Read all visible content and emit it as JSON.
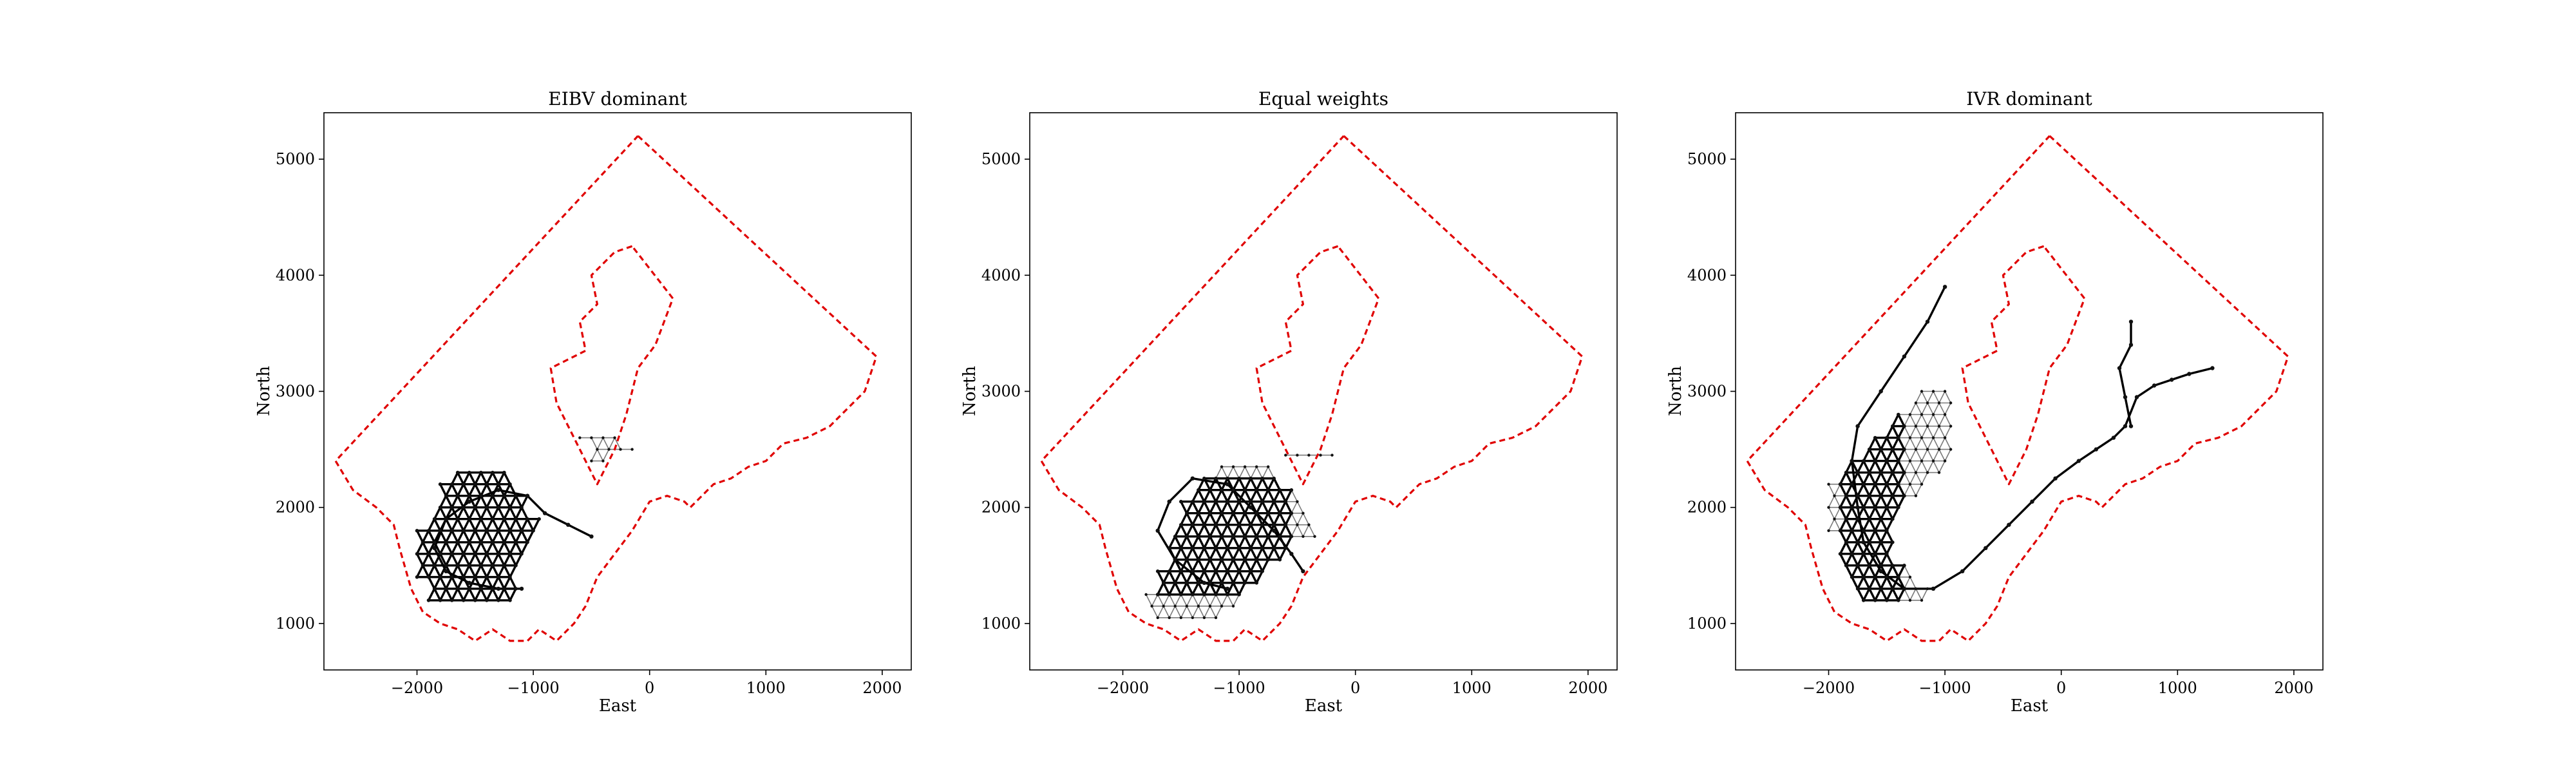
{
  "chart_data": [
    {
      "type": "scatter",
      "title": "EIBV dominant",
      "xlabel": "East",
      "ylabel": "North",
      "xlim": [
        -2800,
        2250
      ],
      "ylim": [
        600,
        5400
      ],
      "xticks": [
        -2000,
        -1000,
        0,
        1000,
        2000
      ],
      "yticks": [
        1000,
        2000,
        3000,
        4000,
        5000
      ],
      "xtick_labels": [
        "−2000",
        "−1000",
        "0",
        "1000",
        "2000"
      ],
      "ytick_labels": [
        "1000",
        "2000",
        "3000",
        "4000",
        "5000"
      ],
      "grid": false,
      "boundary_color": "#e00000",
      "graph": {
        "origin": [
          -2000,
          1200
        ],
        "step": 100,
        "rows": [
          [
            1,
            8,
            17
          ],
          [
            1,
            8,
            17
          ],
          [
            0,
            8,
            17
          ],
          [
            0,
            8,
            17
          ],
          [
            0,
            9,
            17
          ],
          [
            0,
            9,
            16
          ],
          [
            0,
            10,
            16
          ],
          [
            1,
            10,
            15
          ],
          [
            2,
            9,
            15
          ],
          [
            2,
            9,
            16
          ],
          [
            2,
            8,
            16
          ],
          [
            3,
            7,
            16
          ],
          [
            15,
            16
          ],
          [
            15,
            18
          ],
          [
            14,
            17
          ]
        ],
        "dark_cols": [
          0,
          10
        ],
        "dark_rows": [
          0,
          11
        ],
        "path": [
          [
            -1100,
            1300
          ],
          [
            -1300,
            1300
          ],
          [
            -1550,
            1350
          ],
          [
            -1750,
            1450
          ],
          [
            -1850,
            1650
          ],
          [
            -1750,
            1900
          ],
          [
            -1550,
            2050
          ],
          [
            -1300,
            2150
          ],
          [
            -1050,
            2100
          ],
          [
            -900,
            1950
          ],
          [
            -700,
            1850
          ],
          [
            -500,
            1750
          ]
        ]
      }
    },
    {
      "type": "scatter",
      "title": "Equal weights",
      "xlabel": "East",
      "ylabel": "North",
      "xlim": [
        -2800,
        2250
      ],
      "ylim": [
        600,
        5400
      ],
      "xticks": [
        -2000,
        -1000,
        0,
        1000,
        2000
      ],
      "yticks": [
        1000,
        2000,
        3000,
        4000,
        5000
      ],
      "xtick_labels": [
        "−2000",
        "−1000",
        "0",
        "1000",
        "2000"
      ],
      "ytick_labels": [
        "1000",
        "2000",
        "3000",
        "4000",
        "5000"
      ],
      "grid": false,
      "boundary_color": "#e00000",
      "graph": {
        "origin": [
          -2000,
          1050
        ],
        "step": 100,
        "rows": [
          [
            3,
            8
          ],
          [
            2,
            9
          ],
          [
            2,
            10,
            14
          ],
          [
            3,
            11,
            14
          ],
          [
            3,
            12,
            15
          ],
          [
            4,
            13,
            15
          ],
          [
            4,
            14,
            16
          ],
          [
            4,
            16
          ],
          [
            5,
            16
          ],
          [
            5,
            15
          ],
          [
            5,
            15
          ],
          [
            6,
            14
          ],
          [
            7,
            13
          ],
          [
            8,
            12
          ],
          [
            14,
            18
          ]
        ],
        "dark_cols": [
          3,
          14
        ],
        "dark_rows": [
          2,
          12
        ],
        "path": [
          [
            -1100,
            1300
          ],
          [
            -1300,
            1350
          ],
          [
            -1550,
            1550
          ],
          [
            -1700,
            1800
          ],
          [
            -1600,
            2050
          ],
          [
            -1400,
            2250
          ],
          [
            -1100,
            2200
          ],
          [
            -900,
            2000
          ],
          [
            -700,
            1800
          ],
          [
            -550,
            1600
          ],
          [
            -450,
            1450
          ]
        ]
      }
    },
    {
      "type": "scatter",
      "title": "IVR dominant",
      "xlabel": "East",
      "ylabel": "North",
      "xlim": [
        -2800,
        2250
      ],
      "ylim": [
        600,
        5400
      ],
      "xticks": [
        -2000,
        -1000,
        0,
        1000,
        2000
      ],
      "yticks": [
        1000,
        2000,
        3000,
        4000,
        5000
      ],
      "xtick_labels": [
        "−2000",
        "−1000",
        "0",
        "1000",
        "2000"
      ],
      "ytick_labels": [
        "1000",
        "2000",
        "3000",
        "4000",
        "5000"
      ],
      "grid": false,
      "boundary_color": "#e00000",
      "graph": {
        "origin": [
          -2100,
          1200
        ],
        "step": 100,
        "rows": [
          [
            4,
            9
          ],
          [
            3,
            9
          ],
          [
            3,
            8
          ],
          [
            2,
            7
          ],
          [
            2,
            6
          ],
          [
            2,
            6
          ],
          [
            1,
            6
          ],
          [
            1,
            6
          ],
          [
            1,
            7
          ],
          [
            1,
            8
          ],
          [
            1,
            9
          ],
          [
            2,
            10
          ],
          [
            3,
            11
          ],
          [
            4,
            11
          ],
          [
            5,
            11
          ],
          [
            6,
            11
          ],
          [
            7,
            11
          ],
          [
            8,
            11
          ],
          [
            9,
            11
          ]
        ],
        "dark_cols": [
          2,
          7
        ],
        "dark_rows": [
          0,
          16
        ],
        "path": [
          [
            -1000,
            3900
          ],
          [
            -1150,
            3600
          ],
          [
            -1350,
            3300
          ],
          [
            -1550,
            3000
          ],
          [
            -1750,
            2700
          ],
          [
            -1800,
            2400
          ],
          [
            -1750,
            2000
          ],
          [
            -1700,
            1700
          ],
          [
            -1550,
            1450
          ],
          [
            -1350,
            1300
          ],
          [
            -1100,
            1300
          ]
        ],
        "branch": [
          [
            -1100,
            1300
          ],
          [
            -850,
            1450
          ],
          [
            -650,
            1650
          ],
          [
            -450,
            1850
          ],
          [
            -250,
            2050
          ],
          [
            -50,
            2250
          ],
          [
            150,
            2400
          ],
          [
            300,
            2500
          ],
          [
            450,
            2600
          ],
          [
            550,
            2700
          ],
          [
            650,
            2950
          ],
          [
            800,
            3050
          ],
          [
            950,
            3100
          ],
          [
            1100,
            3150
          ],
          [
            1300,
            3200
          ]
        ],
        "spur": [
          [
            600,
            2700
          ],
          [
            550,
            2950
          ],
          [
            500,
            3200
          ],
          [
            600,
            3400
          ],
          [
            600,
            3600
          ]
        ],
        "spur_cols": [
          0,
          0
        ]
      }
    }
  ],
  "boundary": [
    [
      -100,
      5200
    ],
    [
      1950,
      3300
    ],
    [
      1850,
      3000
    ],
    [
      1700,
      2850
    ],
    [
      1550,
      2700
    ],
    [
      1350,
      2600
    ],
    [
      1150,
      2550
    ],
    [
      1000,
      2400
    ],
    [
      850,
      2350
    ],
    [
      700,
      2250
    ],
    [
      550,
      2200
    ],
    [
      450,
      2100
    ],
    [
      350,
      2000
    ],
    [
      300,
      2050
    ],
    [
      150,
      2100
    ],
    [
      0,
      2050
    ],
    [
      -150,
      1800
    ],
    [
      -300,
      1600
    ],
    [
      -450,
      1400
    ],
    [
      -550,
      1150
    ],
    [
      -650,
      1000
    ],
    [
      -800,
      850
    ],
    [
      -950,
      950
    ],
    [
      -1050,
      850
    ],
    [
      -1200,
      850
    ],
    [
      -1350,
      950
    ],
    [
      -1500,
      850
    ],
    [
      -1650,
      950
    ],
    [
      -1800,
      1000
    ],
    [
      -1950,
      1100
    ],
    [
      -2050,
      1300
    ],
    [
      -2150,
      1650
    ],
    [
      -2200,
      1850
    ],
    [
      -2350,
      2000
    ],
    [
      -2550,
      2150
    ],
    [
      -2700,
      2400
    ],
    [
      -100,
      5200
    ]
  ],
  "island": [
    [
      -150,
      4250
    ],
    [
      -300,
      4200
    ],
    [
      -500,
      4000
    ],
    [
      -450,
      3750
    ],
    [
      -600,
      3600
    ],
    [
      -550,
      3350
    ],
    [
      -850,
      3200
    ],
    [
      -800,
      2900
    ],
    [
      -650,
      2600
    ],
    [
      -450,
      2200
    ],
    [
      -300,
      2500
    ],
    [
      -200,
      2800
    ],
    [
      -100,
      3200
    ],
    [
      50,
      3400
    ],
    [
      200,
      3800
    ],
    [
      -150,
      4250
    ]
  ]
}
